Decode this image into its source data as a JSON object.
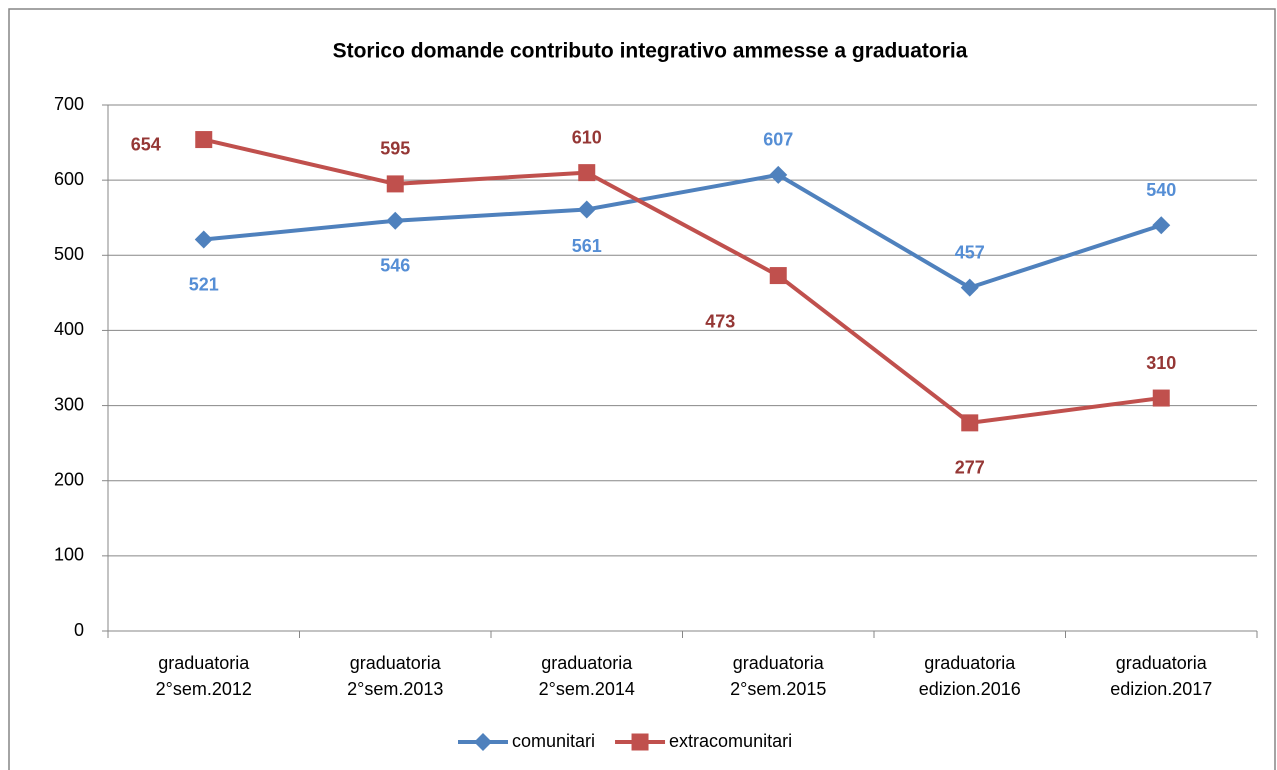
{
  "chart_data": {
    "type": "line",
    "title": "Storico domande contributo integrativo ammesse a graduatoria",
    "categories": [
      "graduatoria\n2°sem.2012",
      "graduatoria\n2°sem.2013",
      "graduatoria\n2°sem.2014",
      "graduatoria\n2°sem.2015",
      "graduatoria\nedizion.2016",
      "graduatoria\nedizion.2017"
    ],
    "series": [
      {
        "name": "comunitari",
        "color": "#4f81bd",
        "values": [
          521,
          546,
          561,
          607,
          457,
          540
        ]
      },
      {
        "name": "extracomunitari",
        "color": "#c0504d",
        "values": [
          654,
          595,
          610,
          473,
          277,
          310
        ]
      }
    ],
    "ylim": [
      0,
      700
    ],
    "yticks": [
      0,
      100,
      200,
      300,
      400,
      500,
      600,
      700
    ],
    "grid": true,
    "legend": "bottom"
  }
}
